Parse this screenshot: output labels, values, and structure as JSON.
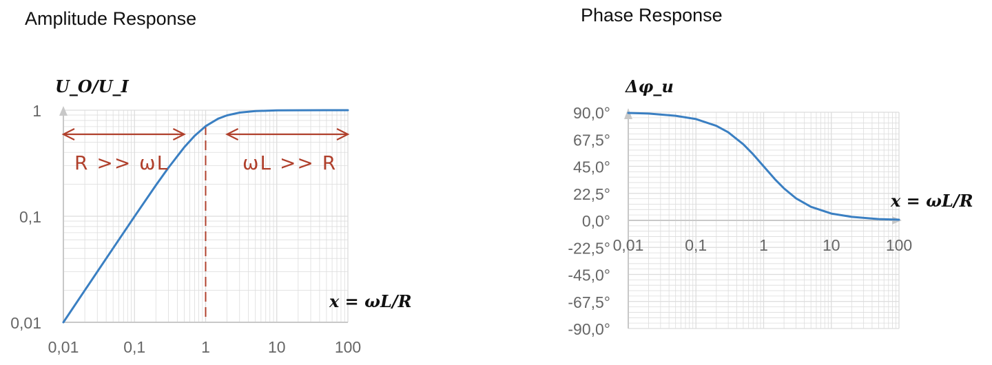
{
  "colors": {
    "curve": "#3a7fc2",
    "annotation": "#b0402c",
    "grid": "#dcdcdc",
    "axis": "#c8c8c8"
  },
  "chart_data": [
    {
      "type": "line",
      "title": "Amplitude Response",
      "ylabel": "U_O/U_I",
      "xlabel": "x = ωL/R",
      "xscale": "log",
      "yscale": "log",
      "xlim": [
        0.01,
        100
      ],
      "ylim": [
        0.01,
        1
      ],
      "x_ticks": [
        "0,01",
        "0,1",
        "1",
        "10",
        "100"
      ],
      "y_ticks": [
        "0,01",
        "0,1",
        "1"
      ],
      "grid": true,
      "series": [
        {
          "x": [
            0.01,
            0.02,
            0.05,
            0.1,
            0.2,
            0.3,
            0.5,
            0.7,
            1,
            1.5,
            2,
            3,
            5,
            10,
            20,
            50,
            100
          ],
          "y": [
            0.01,
            0.02,
            0.05,
            0.0995,
            0.196,
            0.287,
            0.447,
            0.573,
            0.707,
            0.832,
            0.894,
            0.949,
            0.981,
            0.995,
            0.999,
            1.0,
            1.0
          ]
        }
      ],
      "annotations": [
        {
          "text": "R >> ωL",
          "region": [
            0.01,
            0.5
          ]
        },
        {
          "text": "ωL >> R",
          "region": [
            2,
            100
          ]
        }
      ],
      "marker_line_x": 1
    },
    {
      "type": "line",
      "title": "Phase Response",
      "ylabel": "Δφ_u",
      "xlabel": "x = ωL/R",
      "xscale": "log",
      "xlim": [
        0.01,
        100
      ],
      "ylim": [
        -90,
        90
      ],
      "x_ticks": [
        "0,01",
        "0,1",
        "1",
        "10",
        "100"
      ],
      "y_ticks": [
        "90,0°",
        "67,5°",
        "45,0°",
        "22,5°",
        "0,0°",
        "-22,5°",
        "-45,0°",
        "-67,5°",
        "-90,0°"
      ],
      "grid": true,
      "series": [
        {
          "x": [
            0.01,
            0.02,
            0.05,
            0.1,
            0.2,
            0.3,
            0.5,
            0.7,
            1,
            1.5,
            2,
            3,
            5,
            10,
            20,
            50,
            100
          ],
          "y": [
            89.4,
            88.9,
            87.1,
            84.3,
            78.7,
            73.3,
            63.4,
            55.0,
            45.0,
            33.7,
            26.6,
            18.4,
            11.3,
            5.7,
            2.9,
            1.1,
            0.6
          ]
        }
      ]
    }
  ]
}
